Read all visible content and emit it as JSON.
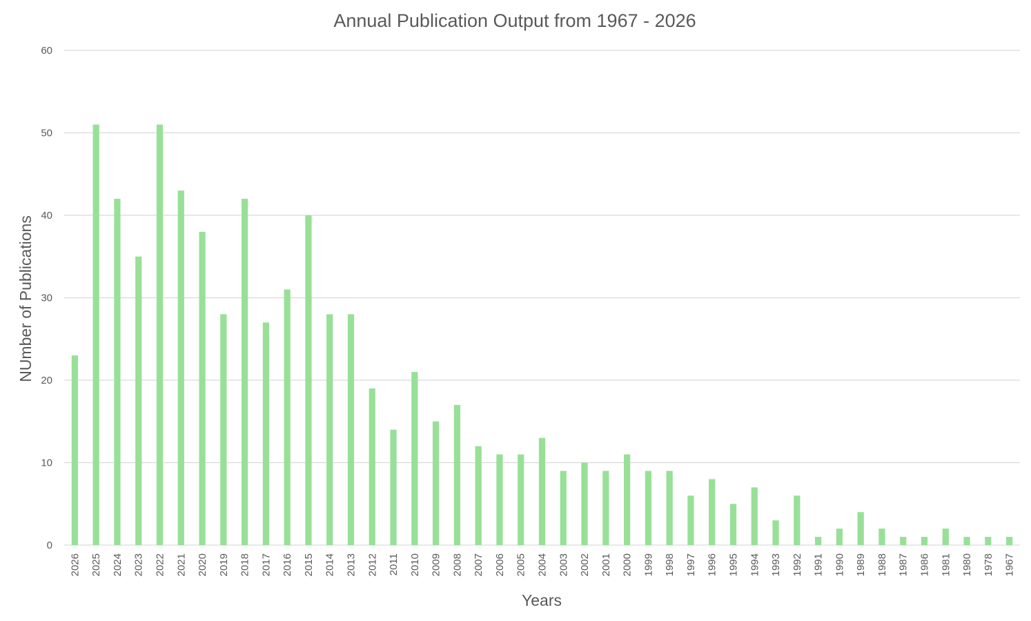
{
  "chart_data": {
    "type": "bar",
    "title": "Annual Publication Output from 1967 - 2026",
    "xlabel": "Years",
    "ylabel": "NUmber of Publications",
    "ylim": [
      0,
      60
    ],
    "yticks": [
      0,
      10,
      20,
      30,
      40,
      50,
      60
    ],
    "grid": true,
    "bar_color": "#98e098",
    "categories": [
      "2026",
      "2025",
      "2024",
      "2023",
      "2022",
      "2021",
      "2020",
      "2019",
      "2018",
      "2017",
      "2016",
      "2015",
      "2014",
      "2013",
      "2012",
      "2011",
      "2010",
      "2009",
      "2008",
      "2007",
      "2006",
      "2005",
      "2004",
      "2003",
      "2002",
      "2001",
      "2000",
      "1999",
      "1998",
      "1997",
      "1996",
      "1995",
      "1994",
      "1993",
      "1992",
      "1991",
      "1990",
      "1989",
      "1988",
      "1987",
      "1986",
      "1981",
      "1980",
      "1978",
      "1967"
    ],
    "values": [
      23,
      51,
      42,
      35,
      51,
      43,
      38,
      28,
      42,
      27,
      31,
      40,
      28,
      28,
      19,
      14,
      21,
      15,
      17,
      12,
      11,
      11,
      13,
      9,
      10,
      9,
      11,
      9,
      9,
      6,
      8,
      5,
      7,
      3,
      6,
      1,
      2,
      4,
      2,
      1,
      1,
      2,
      1,
      1,
      1
    ]
  }
}
